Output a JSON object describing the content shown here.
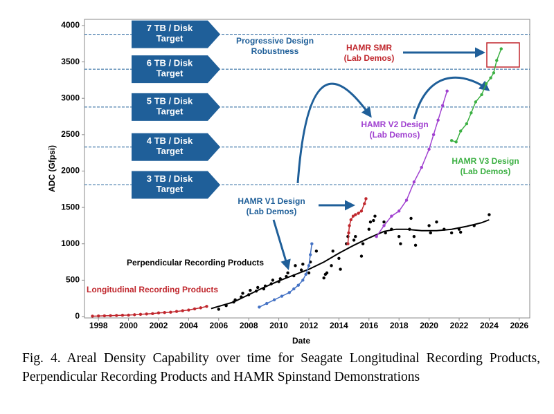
{
  "chart_data": {
    "type": "scatter",
    "xlabel": "Date",
    "ylabel": "ADC (Gfpsi)",
    "xlim": [
      1997.07,
      2026.7
    ],
    "ylim": [
      -19,
      4085
    ],
    "xticks": [
      1998,
      2000,
      2002,
      2004,
      2006,
      2008,
      2010,
      2012,
      2014,
      2016,
      2018,
      2020,
      2022,
      2024,
      2026
    ],
    "yticks": [
      0,
      500,
      1000,
      1500,
      2000,
      2500,
      3000,
      3500,
      4000
    ],
    "targets": [
      {
        "value": 3880,
        "label": [
          "7 TB / Disk",
          "Target"
        ]
      },
      {
        "value": 3400,
        "label": [
          "6 TB / Disk",
          "Target"
        ]
      },
      {
        "value": 2880,
        "label": [
          "5 TB / Disk",
          "Target"
        ]
      },
      {
        "value": 2330,
        "label": [
          "4 TB / Disk",
          "Target"
        ]
      },
      {
        "value": 1810,
        "label": [
          "3 TB / Disk",
          "Target"
        ]
      }
    ],
    "annotations": [
      [
        "Progressive Design",
        "Robustness"
      ],
      [
        "HAMR SMR",
        "(Lab Demos)"
      ]
    ],
    "series": [
      {
        "label": [
          "Longitudinal Recording Products"
        ],
        "color": "#c0272d",
        "markers": true,
        "line": true,
        "x": [
          1997.6,
          1998.0,
          1998.4,
          1998.8,
          1999.2,
          1999.6,
          2000.0,
          2000.4,
          2000.8,
          2001.2,
          2001.6,
          2002.0,
          2002.4,
          2002.8,
          2003.2,
          2003.6,
          2004.0,
          2004.4,
          2004.8,
          2005.2
        ],
        "values": [
          5,
          8,
          10,
          12,
          15,
          18,
          20,
          25,
          30,
          35,
          40,
          50,
          55,
          60,
          70,
          80,
          90,
          105,
          120,
          140
        ]
      },
      {
        "label": [
          "Perpendicular Recording Products"
        ],
        "color": "#000000",
        "markers": true,
        "line": false,
        "x": [
          2006,
          2006.5,
          2007,
          2007.1,
          2007.5,
          2007.6,
          2008,
          2008.1,
          2008.5,
          2008.6,
          2009,
          2009.1,
          2009.5,
          2009.6,
          2010,
          2010.1,
          2010.5,
          2010.6,
          2011,
          2011.1,
          2011.5,
          2011.6,
          2012,
          2012.1,
          2012.5,
          2013,
          2013.1,
          2013.2,
          2013.5,
          2013.6,
          2014,
          2014.1,
          2014.5,
          2014.6,
          2015,
          2015.1,
          2015.5,
          2015.6,
          2016,
          2016.1,
          2016.3,
          2016.4,
          2017,
          2017.1,
          2017.5,
          2018,
          2018.1,
          2018.7,
          2018.8,
          2019,
          2019.1,
          2020,
          2020.1,
          2020.5,
          2021,
          2021.5,
          2022,
          2022.1,
          2023,
          2024
        ],
        "values": [
          100,
          150,
          200,
          230,
          270,
          320,
          300,
          360,
          350,
          400,
          380,
          420,
          450,
          500,
          480,
          520,
          550,
          600,
          560,
          700,
          640,
          720,
          600,
          750,
          900,
          530,
          580,
          600,
          700,
          900,
          800,
          650,
          1000,
          1100,
          1050,
          1100,
          830,
          1000,
          1200,
          1300,
          1320,
          1380,
          1300,
          1150,
          1200,
          1100,
          1000,
          1200,
          1350,
          1100,
          980,
          1250,
          1150,
          1300,
          1200,
          1150,
          1200,
          1160,
          1250,
          1400
        ]
      },
      {
        "color": "#000000",
        "markers": false,
        "line": true,
        "x": [
          2005.5,
          2007,
          2008,
          2009,
          2010,
          2011,
          2012,
          2013,
          2014,
          2015,
          2016,
          2017,
          2017.8,
          2018.5,
          2019.5,
          2020.5,
          2021.5,
          2022.5,
          2023.5,
          2024
        ],
        "values": [
          110,
          200,
          300,
          400,
          490,
          570,
          650,
          750,
          870,
          980,
          1080,
          1170,
          1200,
          1200,
          1180,
          1180,
          1200,
          1240,
          1290,
          1330
        ]
      },
      {
        "label": [
          "HAMR V1 Design",
          "(Lab Demos)"
        ],
        "color": "#4472c4",
        "markers": true,
        "line": true,
        "x": [
          2008.7,
          2009.2,
          2009.7,
          2010.2,
          2010.7,
          2011,
          2011.3,
          2011.6,
          2011.8,
          2012,
          2012.1,
          2012.2
        ],
        "values": [
          130,
          180,
          230,
          280,
          330,
          380,
          430,
          500,
          580,
          700,
          850,
          1000
        ]
      },
      {
        "color": "#c0272d",
        "markers": true,
        "line": true,
        "x": [
          2014.6,
          2014.65,
          2014.7,
          2014.8,
          2014.95,
          2015.1,
          2015.3,
          2015.5,
          2015.7,
          2015.8
        ],
        "values": [
          1000,
          1150,
          1250,
          1330,
          1380,
          1400,
          1420,
          1450,
          1550,
          1620
        ]
      },
      {
        "label": [
          "HAMR V2 Design",
          "(Lab Demos)"
        ],
        "color": "#a040d0",
        "markers": true,
        "line": true,
        "x": [
          2016.5,
          2017,
          2017.5,
          2018,
          2018.5,
          2019,
          2019.5,
          2020,
          2020.3,
          2020.6,
          2020.9,
          2021.2
        ],
        "values": [
          1100,
          1250,
          1380,
          1450,
          1600,
          1850,
          2050,
          2300,
          2500,
          2700,
          2900,
          3100
        ]
      },
      {
        "label": [
          "HAMR V3 Design",
          "(Lab Demos)"
        ],
        "color": "#3cb043",
        "markers": true,
        "line": true,
        "x": [
          2021.5,
          2021.8,
          2022.1,
          2022.5,
          2022.8,
          2023.1,
          2023.5,
          2023.8,
          2024.1,
          2024.3,
          2024.5,
          2024.8
        ],
        "values": [
          2420,
          2400,
          2550,
          2650,
          2800,
          2950,
          3050,
          3200,
          3280,
          3350,
          3520,
          3680
        ]
      }
    ]
  },
  "caption": "Fig. 4. Areal Density Capability over time for Seagate Longitudinal Recording Products, Perpendicular Recording Products and HAMR Spinstand Demonstrations"
}
